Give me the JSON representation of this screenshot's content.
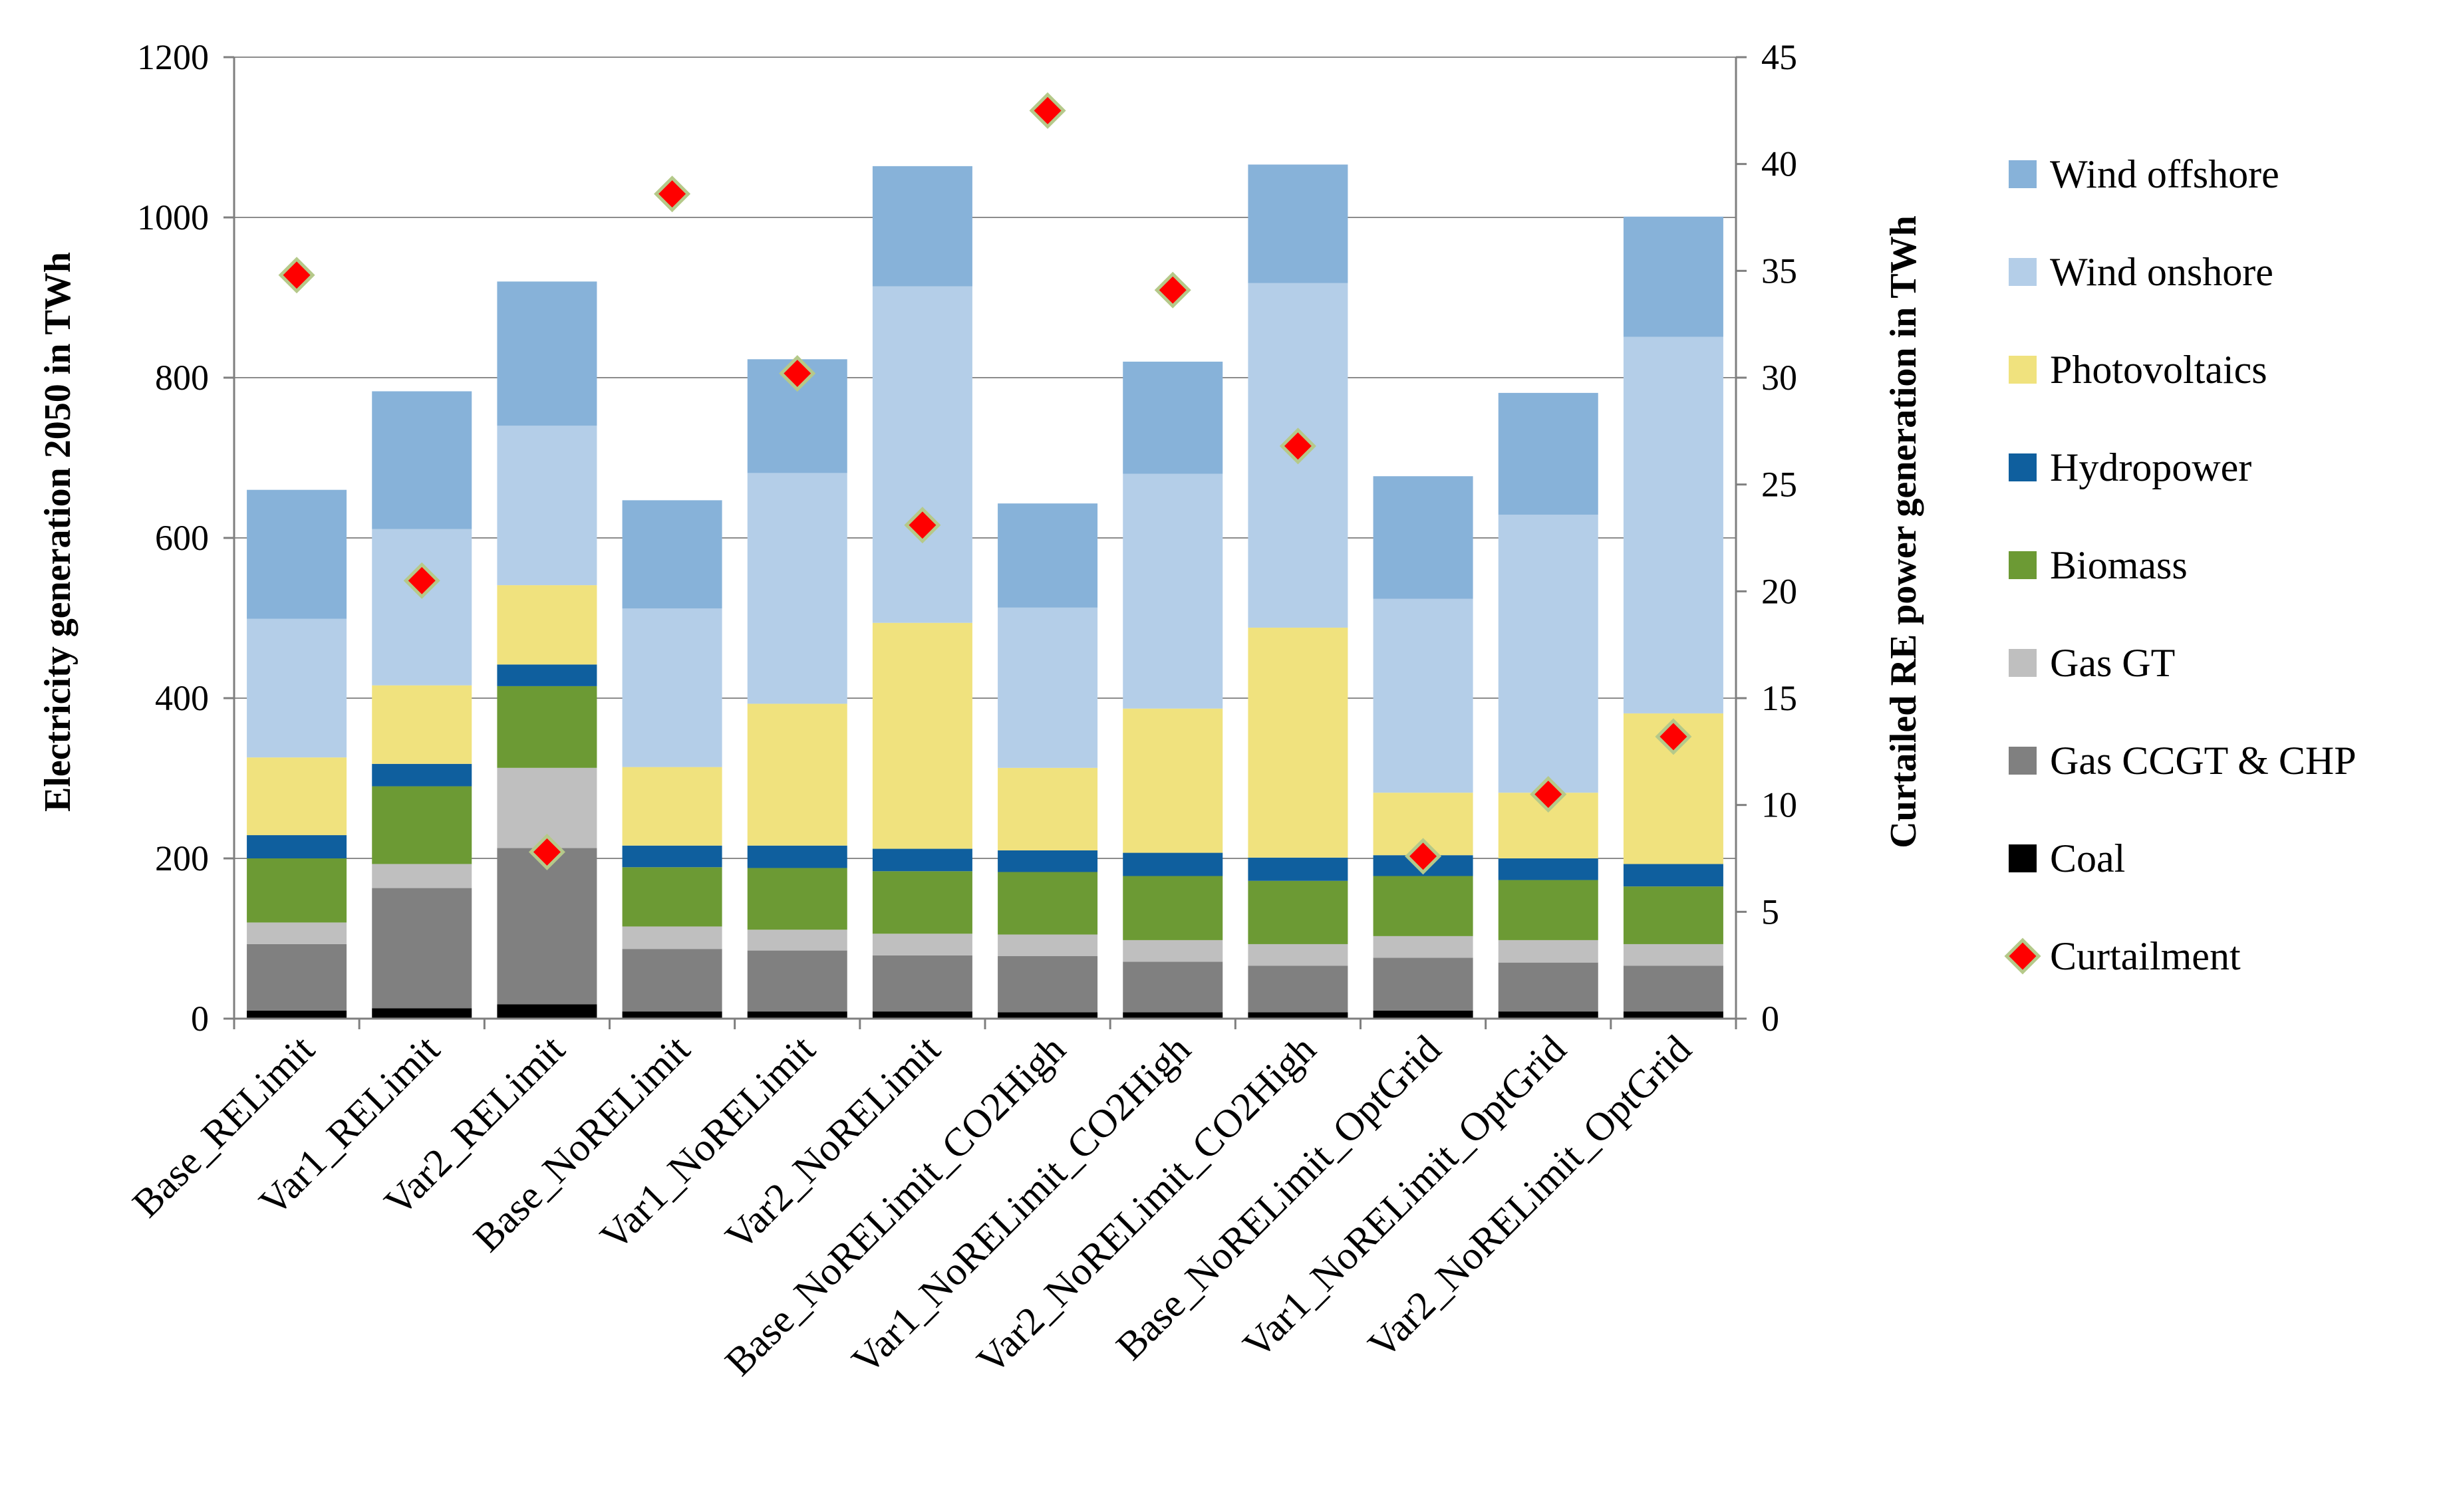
{
  "chart_data": {
    "type": "bar",
    "stacked": true,
    "title": "",
    "xlabel": "",
    "ylabel": "Electricity generation 2050 in TWh",
    "ylim": [
      0,
      1200
    ],
    "yticks": [
      0,
      200,
      400,
      600,
      800,
      1000,
      1200
    ],
    "y2label": "Curtailed RE power generation in TWh",
    "y2lim": [
      0,
      45
    ],
    "y2ticks": [
      0,
      5,
      10,
      15,
      20,
      25,
      30,
      35,
      40,
      45
    ],
    "grid": true,
    "legend_position": "right",
    "categories": [
      "Base_RELimit",
      "Var1_RELimit",
      "Var2_RELimit",
      "Base_NoRELimit",
      "Var1_NoRELimit",
      "Var2_NoRELimit",
      "Base_NoRELimit_CO2High",
      "Var1_NoRELimit_CO2High",
      "Var2_NoRELimit_CO2High",
      "Base_NoRELimit_OptGrid",
      "Var1_NoRELimit_OptGrid",
      "Var2_NoRELimit_OptGrid"
    ],
    "series": [
      {
        "name": "Coal",
        "color": "#000000",
        "values": [
          10,
          13,
          18,
          9,
          9,
          9,
          8,
          8,
          8,
          10,
          9,
          9
        ]
      },
      {
        "name": "Gas CCGT & CHP",
        "color": "#808080",
        "values": [
          83,
          150,
          195,
          78,
          76,
          70,
          70,
          63,
          58,
          66,
          61,
          57
        ]
      },
      {
        "name": "Gas GT",
        "color": "#BFBFBF",
        "values": [
          27,
          30,
          100,
          28,
          26,
          27,
          27,
          27,
          27,
          27,
          28,
          27
        ]
      },
      {
        "name": "Biomass",
        "color": "#6C9A34",
        "values": [
          80,
          97,
          102,
          74,
          77,
          78,
          78,
          80,
          79,
          75,
          75,
          72
        ]
      },
      {
        "name": "Hydropower",
        "color": "#0F5F9E",
        "values": [
          29,
          28,
          27,
          27,
          28,
          28,
          27,
          29,
          29,
          26,
          27,
          28
        ]
      },
      {
        "name": "Photovoltaics",
        "color": "#F0E27E",
        "values": [
          97,
          98,
          99,
          98,
          177,
          282,
          103,
          180,
          287,
          78,
          82,
          188
        ]
      },
      {
        "name": "Wind onshore",
        "color": "#B4CEE8",
        "values": [
          173,
          195,
          199,
          198,
          288,
          420,
          200,
          293,
          430,
          242,
          347,
          470
        ]
      },
      {
        "name": "Wind offshore",
        "color": "#87B2D9",
        "values": [
          161,
          172,
          180,
          135,
          142,
          150,
          130,
          140,
          148,
          153,
          152,
          150
        ]
      }
    ],
    "curtailment": {
      "name": "Curtailment",
      "axis": "secondary",
      "color": "#FF0000",
      "edge_color": "#B5C98A",
      "values": [
        34.8,
        20.5,
        7.8,
        38.6,
        30.2,
        23.1,
        42.5,
        34.1,
        26.8,
        7.6,
        10.5,
        13.2
      ]
    },
    "legend": [
      "Wind offshore",
      "Wind onshore",
      "Photovoltaics",
      "Hydropower",
      "Biomass",
      "Gas GT",
      "Gas CCGT & CHP",
      "Coal",
      "Curtailment"
    ]
  }
}
